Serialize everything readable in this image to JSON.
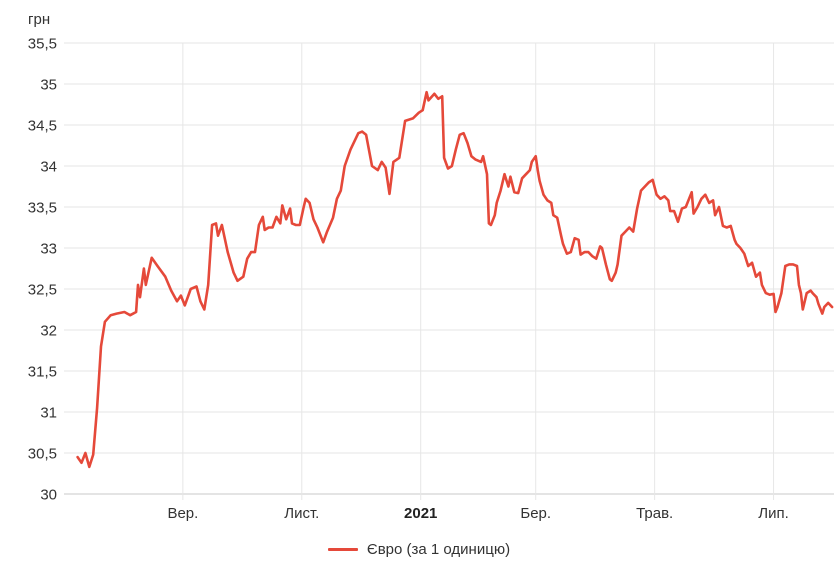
{
  "chart_data": {
    "type": "line",
    "title": "",
    "y_axis": {
      "unit_label": "грн",
      "min": 30,
      "max": 35.5,
      "tick_step": 0.5,
      "grid": true,
      "ticks": [
        {
          "v": 35.5,
          "label": "35,5"
        },
        {
          "v": 35,
          "label": "35"
        },
        {
          "v": 34.5,
          "label": "34,5"
        },
        {
          "v": 34,
          "label": "34"
        },
        {
          "v": 33.5,
          "label": "33,5"
        },
        {
          "v": 33,
          "label": "33"
        },
        {
          "v": 32.5,
          "label": "32,5"
        },
        {
          "v": 32,
          "label": "32"
        },
        {
          "v": 31.5,
          "label": "31,5"
        },
        {
          "v": 31,
          "label": "31"
        },
        {
          "v": 30.5,
          "label": "30,5"
        },
        {
          "v": 30,
          "label": "30"
        }
      ]
    },
    "x_axis": {
      "domain_start": "2020-07-01",
      "domain_end": "2021-08-01",
      "grid": true,
      "ticks": [
        {
          "date": "2020-09-01",
          "label": "Вер.",
          "bold": false
        },
        {
          "date": "2020-11-01",
          "label": "Лист.",
          "bold": false
        },
        {
          "date": "2021-01-01",
          "label": "2021",
          "bold": true
        },
        {
          "date": "2021-03-01",
          "label": "Бер.",
          "bold": false
        },
        {
          "date": "2021-05-01",
          "label": "Трав.",
          "bold": false
        },
        {
          "date": "2021-07-01",
          "label": "Лип.",
          "bold": false
        }
      ]
    },
    "legend_position": "bottom-center",
    "colors": {
      "grid": "#e6e6e6",
      "axis_line": "#c9c9c9",
      "tick_text": "#333333",
      "bold_tick_text": "#222222",
      "background": "#ffffff"
    },
    "series": [
      {
        "name": "Євро (за 1 одиницю)",
        "color": "#e5493a",
        "points": [
          [
            "2020-07-09",
            30.45
          ],
          [
            "2020-07-11",
            30.38
          ],
          [
            "2020-07-13",
            30.5
          ],
          [
            "2020-07-15",
            30.33
          ],
          [
            "2020-07-17",
            30.48
          ],
          [
            "2020-07-19",
            31.05
          ],
          [
            "2020-07-21",
            31.8
          ],
          [
            "2020-07-23",
            32.1
          ],
          [
            "2020-07-26",
            32.18
          ],
          [
            "2020-07-29",
            32.2
          ],
          [
            "2020-08-02",
            32.22
          ],
          [
            "2020-08-05",
            32.18
          ],
          [
            "2020-08-08",
            32.22
          ],
          [
            "2020-08-09",
            32.55
          ],
          [
            "2020-08-10",
            32.4
          ],
          [
            "2020-08-12",
            32.75
          ],
          [
            "2020-08-13",
            32.55
          ],
          [
            "2020-08-16",
            32.88
          ],
          [
            "2020-08-19",
            32.78
          ],
          [
            "2020-08-23",
            32.65
          ],
          [
            "2020-08-26",
            32.48
          ],
          [
            "2020-08-29",
            32.35
          ],
          [
            "2020-08-31",
            32.42
          ],
          [
            "2020-09-02",
            32.3
          ],
          [
            "2020-09-05",
            32.5
          ],
          [
            "2020-09-08",
            32.53
          ],
          [
            "2020-09-10",
            32.35
          ],
          [
            "2020-09-12",
            32.25
          ],
          [
            "2020-09-14",
            32.55
          ],
          [
            "2020-09-16",
            33.28
          ],
          [
            "2020-09-18",
            33.3
          ],
          [
            "2020-09-19",
            33.15
          ],
          [
            "2020-09-21",
            33.28
          ],
          [
            "2020-09-24",
            32.95
          ],
          [
            "2020-09-27",
            32.7
          ],
          [
            "2020-09-29",
            32.6
          ],
          [
            "2020-10-02",
            32.65
          ],
          [
            "2020-10-04",
            32.87
          ],
          [
            "2020-10-06",
            32.95
          ],
          [
            "2020-10-08",
            32.95
          ],
          [
            "2020-10-10",
            33.28
          ],
          [
            "2020-10-12",
            33.38
          ],
          [
            "2020-10-13",
            33.22
          ],
          [
            "2020-10-15",
            33.25
          ],
          [
            "2020-10-17",
            33.25
          ],
          [
            "2020-10-19",
            33.38
          ],
          [
            "2020-10-21",
            33.3
          ],
          [
            "2020-10-22",
            33.52
          ],
          [
            "2020-10-24",
            33.35
          ],
          [
            "2020-10-26",
            33.48
          ],
          [
            "2020-10-27",
            33.3
          ],
          [
            "2020-10-29",
            33.28
          ],
          [
            "2020-10-31",
            33.28
          ],
          [
            "2020-11-02",
            33.5
          ],
          [
            "2020-11-03",
            33.6
          ],
          [
            "2020-11-05",
            33.55
          ],
          [
            "2020-11-07",
            33.35
          ],
          [
            "2020-11-09",
            33.25
          ],
          [
            "2020-11-12",
            33.07
          ],
          [
            "2020-11-14",
            33.2
          ],
          [
            "2020-11-17",
            33.37
          ],
          [
            "2020-11-19",
            33.6
          ],
          [
            "2020-11-21",
            33.7
          ],
          [
            "2020-11-23",
            34.0
          ],
          [
            "2020-11-26",
            34.2
          ],
          [
            "2020-11-30",
            34.4
          ],
          [
            "2020-12-02",
            34.42
          ],
          [
            "2020-12-04",
            34.38
          ],
          [
            "2020-12-07",
            34.0
          ],
          [
            "2020-12-10",
            33.95
          ],
          [
            "2020-12-12",
            34.05
          ],
          [
            "2020-12-14",
            33.98
          ],
          [
            "2020-12-16",
            33.66
          ],
          [
            "2020-12-18",
            34.05
          ],
          [
            "2020-12-21",
            34.1
          ],
          [
            "2020-12-24",
            34.55
          ],
          [
            "2020-12-28",
            34.58
          ],
          [
            "2020-12-31",
            34.65
          ],
          [
            "2021-01-02",
            34.68
          ],
          [
            "2021-01-04",
            34.9
          ],
          [
            "2021-01-05",
            34.8
          ],
          [
            "2021-01-08",
            34.88
          ],
          [
            "2021-01-10",
            34.82
          ],
          [
            "2021-01-12",
            34.85
          ],
          [
            "2021-01-13",
            34.1
          ],
          [
            "2021-01-15",
            33.97
          ],
          [
            "2021-01-17",
            34.0
          ],
          [
            "2021-01-19",
            34.2
          ],
          [
            "2021-01-21",
            34.38
          ],
          [
            "2021-01-23",
            34.4
          ],
          [
            "2021-01-25",
            34.28
          ],
          [
            "2021-01-27",
            34.12
          ],
          [
            "2021-01-29",
            34.08
          ],
          [
            "2021-02-01",
            34.05
          ],
          [
            "2021-02-02",
            34.12
          ],
          [
            "2021-02-04",
            33.9
          ],
          [
            "2021-02-05",
            33.3
          ],
          [
            "2021-02-06",
            33.28
          ],
          [
            "2021-02-08",
            33.4
          ],
          [
            "2021-02-09",
            33.55
          ],
          [
            "2021-02-11",
            33.7
          ],
          [
            "2021-02-13",
            33.9
          ],
          [
            "2021-02-15",
            33.75
          ],
          [
            "2021-02-16",
            33.87
          ],
          [
            "2021-02-18",
            33.68
          ],
          [
            "2021-02-20",
            33.67
          ],
          [
            "2021-02-22",
            33.85
          ],
          [
            "2021-02-24",
            33.9
          ],
          [
            "2021-02-26",
            33.95
          ],
          [
            "2021-02-27",
            34.05
          ],
          [
            "2021-03-01",
            34.12
          ],
          [
            "2021-03-02",
            33.95
          ],
          [
            "2021-03-03",
            33.82
          ],
          [
            "2021-03-05",
            33.65
          ],
          [
            "2021-03-07",
            33.58
          ],
          [
            "2021-03-09",
            33.55
          ],
          [
            "2021-03-10",
            33.4
          ],
          [
            "2021-03-12",
            33.37
          ],
          [
            "2021-03-14",
            33.15
          ],
          [
            "2021-03-15",
            33.05
          ],
          [
            "2021-03-17",
            32.93
          ],
          [
            "2021-03-19",
            32.95
          ],
          [
            "2021-03-21",
            33.12
          ],
          [
            "2021-03-23",
            33.1
          ],
          [
            "2021-03-24",
            32.92
          ],
          [
            "2021-03-26",
            32.95
          ],
          [
            "2021-03-28",
            32.95
          ],
          [
            "2021-03-30",
            32.9
          ],
          [
            "2021-04-01",
            32.87
          ],
          [
            "2021-04-03",
            33.02
          ],
          [
            "2021-04-04",
            33.0
          ],
          [
            "2021-04-06",
            32.8
          ],
          [
            "2021-04-08",
            32.62
          ],
          [
            "2021-04-09",
            32.6
          ],
          [
            "2021-04-11",
            32.7
          ],
          [
            "2021-04-12",
            32.8
          ],
          [
            "2021-04-14",
            33.15
          ],
          [
            "2021-04-16",
            33.2
          ],
          [
            "2021-04-18",
            33.25
          ],
          [
            "2021-04-20",
            33.2
          ],
          [
            "2021-04-22",
            33.48
          ],
          [
            "2021-04-24",
            33.7
          ],
          [
            "2021-04-26",
            33.75
          ],
          [
            "2021-04-28",
            33.8
          ],
          [
            "2021-04-30",
            33.83
          ],
          [
            "2021-05-02",
            33.65
          ],
          [
            "2021-05-04",
            33.6
          ],
          [
            "2021-05-06",
            33.63
          ],
          [
            "2021-05-08",
            33.58
          ],
          [
            "2021-05-09",
            33.45
          ],
          [
            "2021-05-11",
            33.45
          ],
          [
            "2021-05-13",
            33.32
          ],
          [
            "2021-05-15",
            33.48
          ],
          [
            "2021-05-17",
            33.5
          ],
          [
            "2021-05-20",
            33.68
          ],
          [
            "2021-05-21",
            33.42
          ],
          [
            "2021-05-23",
            33.5
          ],
          [
            "2021-05-25",
            33.6
          ],
          [
            "2021-05-27",
            33.65
          ],
          [
            "2021-05-29",
            33.55
          ],
          [
            "2021-05-31",
            33.58
          ],
          [
            "2021-06-01",
            33.4
          ],
          [
            "2021-06-03",
            33.5
          ],
          [
            "2021-06-05",
            33.27
          ],
          [
            "2021-06-07",
            33.25
          ],
          [
            "2021-06-09",
            33.27
          ],
          [
            "2021-06-11",
            33.1
          ],
          [
            "2021-06-12",
            33.05
          ],
          [
            "2021-06-14",
            33.0
          ],
          [
            "2021-06-16",
            32.93
          ],
          [
            "2021-06-18",
            32.78
          ],
          [
            "2021-06-20",
            32.82
          ],
          [
            "2021-06-22",
            32.65
          ],
          [
            "2021-06-24",
            32.7
          ],
          [
            "2021-06-25",
            32.55
          ],
          [
            "2021-06-27",
            32.45
          ],
          [
            "2021-06-29",
            32.43
          ],
          [
            "2021-07-01",
            32.44
          ],
          [
            "2021-07-02",
            32.22
          ],
          [
            "2021-07-03",
            32.28
          ],
          [
            "2021-07-05",
            32.45
          ],
          [
            "2021-07-07",
            32.78
          ],
          [
            "2021-07-09",
            32.8
          ],
          [
            "2021-07-11",
            32.8
          ],
          [
            "2021-07-13",
            32.78
          ],
          [
            "2021-07-14",
            32.55
          ],
          [
            "2021-07-15",
            32.45
          ],
          [
            "2021-07-16",
            32.25
          ],
          [
            "2021-07-18",
            32.45
          ],
          [
            "2021-07-20",
            32.48
          ],
          [
            "2021-07-21",
            32.45
          ],
          [
            "2021-07-23",
            32.4
          ],
          [
            "2021-07-24",
            32.32
          ],
          [
            "2021-07-26",
            32.2
          ],
          [
            "2021-07-27",
            32.28
          ],
          [
            "2021-07-29",
            32.33
          ],
          [
            "2021-07-31",
            32.28
          ]
        ]
      }
    ]
  },
  "legend": {
    "series_label": "Євро (за 1 одиницю)"
  }
}
